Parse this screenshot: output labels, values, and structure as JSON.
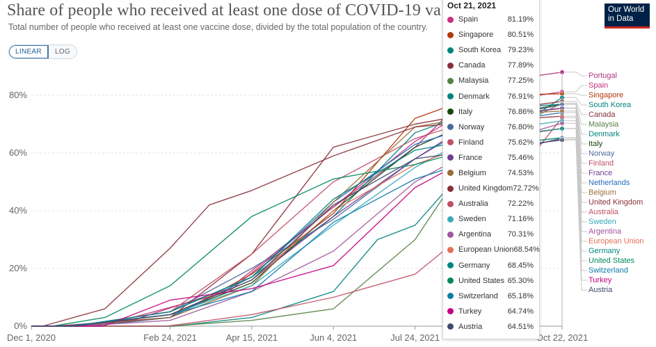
{
  "header": {
    "title": "Share of people who received at least one dose of COVID-19 va",
    "subtitle": "Total number of people who received at least one vaccine dose, divided by the total population of the country."
  },
  "controls": {
    "linear_label": "LINEAR",
    "log_label": "LOG",
    "active": "LINEAR"
  },
  "logo": {
    "line1": "Our World",
    "line2": "in Data"
  },
  "tooltip": {
    "date": "Oct 21, 2021",
    "rows": [
      {
        "name": "Spain",
        "value": "81.19%"
      },
      {
        "name": "Singapore",
        "value": "80.51%"
      },
      {
        "name": "South Korea",
        "value": "79.23%"
      },
      {
        "name": "Canada",
        "value": "77.89%"
      },
      {
        "name": "Malaysia",
        "value": "77.25%"
      },
      {
        "name": "Denmark",
        "value": "76.91%"
      },
      {
        "name": "Italy",
        "value": "76.86%"
      },
      {
        "name": "Norway",
        "value": "76.80%"
      },
      {
        "name": "Finland",
        "value": "75.62%"
      },
      {
        "name": "France",
        "value": "75.46%"
      },
      {
        "name": "Belgium",
        "value": "74.53%"
      },
      {
        "name": "United Kingdom",
        "value": "72.72%"
      },
      {
        "name": "Australia",
        "value": "72.22%"
      },
      {
        "name": "Sweden",
        "value": "71.16%"
      },
      {
        "name": "Argentina",
        "value": "70.31%"
      },
      {
        "name": "European Union",
        "value": "68.54%"
      },
      {
        "name": "Germany",
        "value": "68.45%"
      },
      {
        "name": "United States",
        "value": "65.30%"
      },
      {
        "name": "Switzerland",
        "value": "65.18%"
      },
      {
        "name": "Turkey",
        "value": "64.74%"
      },
      {
        "name": "Austria",
        "value": "64.51%"
      }
    ]
  },
  "chart_data": {
    "type": "line",
    "title": "Share of people who received at least one dose of COVID-19 va",
    "subtitle": "Total number of people who received at least one vaccine dose, divided by the total population of the country.",
    "x_ticks": [
      "Dec 1, 2020",
      "Feb 24, 2021",
      "Apr 15, 2021",
      "Jun 4, 2021",
      "Jul 24, 2021",
      "Oct 22, 2021"
    ],
    "y_ticks": [
      "0%",
      "20%",
      "40%",
      "60%",
      "80%"
    ],
    "ylim": [
      0,
      85
    ],
    "xlim": [
      "2020-12-01",
      "2021-10-22"
    ],
    "grid": "horizontal dashed",
    "legend": "right end labels",
    "end_labels": [
      "Portugal",
      "Spain",
      "Singapore",
      "South Korea",
      "Canada",
      "Malaysia",
      "Denmark",
      "Italy",
      "Norway",
      "Finland",
      "France",
      "Netherlands",
      "Belgium",
      "United Kingdom",
      "Australia",
      "Sweden",
      "Argentina",
      "European Union",
      "Germany",
      "United States",
      "Switzerland",
      "Turkey",
      "Austria"
    ],
    "series": [
      {
        "name": "Portugal",
        "color": "#b13584",
        "points": [
          [
            "2020-12-27",
            0
          ],
          [
            "2021-02-01",
            2
          ],
          [
            "2021-04-01",
            13
          ],
          [
            "2021-06-01",
            40
          ],
          [
            "2021-07-24",
            62
          ],
          [
            "2021-09-01",
            84
          ],
          [
            "2021-10-22",
            88
          ]
        ]
      },
      {
        "name": "Spain",
        "color": "#c8307a",
        "points": [
          [
            "2020-12-27",
            0
          ],
          [
            "2021-02-01",
            3
          ],
          [
            "2021-04-01",
            12
          ],
          [
            "2021-06-01",
            40
          ],
          [
            "2021-07-24",
            64
          ],
          [
            "2021-09-01",
            77
          ],
          [
            "2021-10-22",
            81.19
          ]
        ]
      },
      {
        "name": "Singapore",
        "color": "#b3380c",
        "points": [
          [
            "2021-01-05",
            0
          ],
          [
            "2021-02-24",
            3
          ],
          [
            "2021-04-15",
            18
          ],
          [
            "2021-06-04",
            39
          ],
          [
            "2021-07-24",
            72
          ],
          [
            "2021-09-01",
            80
          ],
          [
            "2021-10-22",
            80.51
          ]
        ]
      },
      {
        "name": "South Korea",
        "color": "#00847e",
        "points": [
          [
            "2021-02-26",
            0
          ],
          [
            "2021-04-15",
            3
          ],
          [
            "2021-06-04",
            12
          ],
          [
            "2021-07-01",
            30
          ],
          [
            "2021-07-24",
            35
          ],
          [
            "2021-09-01",
            60
          ],
          [
            "2021-10-22",
            79.23
          ]
        ]
      },
      {
        "name": "Canada",
        "color": "#883039",
        "points": [
          [
            "2020-12-15",
            0
          ],
          [
            "2021-02-24",
            3
          ],
          [
            "2021-04-15",
            25
          ],
          [
            "2021-06-04",
            62
          ],
          [
            "2021-07-24",
            70
          ],
          [
            "2021-09-01",
            74
          ],
          [
            "2021-10-22",
            77.89
          ]
        ]
      },
      {
        "name": "Malaysia",
        "color": "#578145",
        "points": [
          [
            "2021-02-24",
            0
          ],
          [
            "2021-04-15",
            2
          ],
          [
            "2021-06-04",
            6
          ],
          [
            "2021-07-24",
            30
          ],
          [
            "2021-09-01",
            63
          ],
          [
            "2021-10-22",
            77.25
          ]
        ]
      },
      {
        "name": "Denmark",
        "color": "#00847e",
        "points": [
          [
            "2020-12-27",
            0
          ],
          [
            "2021-02-24",
            5
          ],
          [
            "2021-04-15",
            17
          ],
          [
            "2021-06-04",
            38
          ],
          [
            "2021-07-24",
            67
          ],
          [
            "2021-09-01",
            75
          ],
          [
            "2021-10-22",
            76.91
          ]
        ]
      },
      {
        "name": "Italy",
        "color": "#18470f",
        "points": [
          [
            "2020-12-27",
            0
          ],
          [
            "2021-02-24",
            4
          ],
          [
            "2021-04-15",
            15
          ],
          [
            "2021-06-04",
            40
          ],
          [
            "2021-07-24",
            62
          ],
          [
            "2021-09-01",
            72
          ],
          [
            "2021-10-22",
            76.86
          ]
        ]
      },
      {
        "name": "Norway",
        "color": "#4c6a9c",
        "points": [
          [
            "2020-12-27",
            0
          ],
          [
            "2021-02-24",
            5
          ],
          [
            "2021-04-15",
            20
          ],
          [
            "2021-06-04",
            37
          ],
          [
            "2021-07-24",
            58
          ],
          [
            "2021-09-01",
            71
          ],
          [
            "2021-10-22",
            76.8
          ]
        ]
      },
      {
        "name": "Finland",
        "color": "#c15065",
        "points": [
          [
            "2020-12-27",
            0
          ],
          [
            "2021-02-24",
            5
          ],
          [
            "2021-04-15",
            25
          ],
          [
            "2021-06-04",
            50
          ],
          [
            "2021-07-24",
            65
          ],
          [
            "2021-09-01",
            72
          ],
          [
            "2021-10-22",
            75.62
          ]
        ]
      },
      {
        "name": "France",
        "color": "#6d3e91",
        "points": [
          [
            "2020-12-27",
            0
          ],
          [
            "2021-02-24",
            4
          ],
          [
            "2021-04-15",
            16
          ],
          [
            "2021-06-04",
            38
          ],
          [
            "2021-07-24",
            58
          ],
          [
            "2021-09-01",
            72
          ],
          [
            "2021-10-22",
            75.46
          ]
        ]
      },
      {
        "name": "Netherlands",
        "color": "#286bbb",
        "points": [
          [
            "2021-01-06",
            0
          ],
          [
            "2021-02-24",
            3
          ],
          [
            "2021-04-15",
            17
          ],
          [
            "2021-06-04",
            43
          ],
          [
            "2021-07-24",
            63
          ],
          [
            "2021-09-01",
            70
          ],
          [
            "2021-10-22",
            74
          ]
        ]
      },
      {
        "name": "Belgium",
        "color": "#996d39",
        "points": [
          [
            "2020-12-28",
            0
          ],
          [
            "2021-02-24",
            3
          ],
          [
            "2021-04-15",
            14
          ],
          [
            "2021-06-04",
            43
          ],
          [
            "2021-07-24",
            69
          ],
          [
            "2021-09-01",
            73
          ],
          [
            "2021-10-22",
            74.53
          ]
        ]
      },
      {
        "name": "United Kingdom",
        "color": "#883039",
        "points": [
          [
            "2020-12-08",
            0
          ],
          [
            "2021-01-15",
            6
          ],
          [
            "2021-02-24",
            27
          ],
          [
            "2021-03-20",
            42
          ],
          [
            "2021-04-15",
            47
          ],
          [
            "2021-06-04",
            59
          ],
          [
            "2021-07-24",
            69
          ],
          [
            "2021-09-01",
            71
          ],
          [
            "2021-10-22",
            72.72
          ]
        ]
      },
      {
        "name": "Australia",
        "color": "#c15065",
        "points": [
          [
            "2021-02-22",
            0
          ],
          [
            "2021-04-15",
            4
          ],
          [
            "2021-06-04",
            10
          ],
          [
            "2021-07-24",
            18
          ],
          [
            "2021-09-01",
            36
          ],
          [
            "2021-10-22",
            72.22
          ]
        ]
      },
      {
        "name": "Sweden",
        "color": "#38aaba",
        "points": [
          [
            "2020-12-27",
            0
          ],
          [
            "2021-02-24",
            4
          ],
          [
            "2021-04-15",
            14
          ],
          [
            "2021-06-04",
            35
          ],
          [
            "2021-07-24",
            55
          ],
          [
            "2021-09-01",
            67
          ],
          [
            "2021-10-22",
            71.16
          ]
        ]
      },
      {
        "name": "Argentina",
        "color": "#a2559c",
        "points": [
          [
            "2020-12-29",
            0
          ],
          [
            "2021-02-24",
            2
          ],
          [
            "2021-04-15",
            12
          ],
          [
            "2021-06-04",
            26
          ],
          [
            "2021-07-24",
            50
          ],
          [
            "2021-09-01",
            62
          ],
          [
            "2021-10-22",
            70.31
          ]
        ]
      },
      {
        "name": "European Union",
        "color": "#e56e5a",
        "points": [
          [
            "2020-12-27",
            0
          ],
          [
            "2021-02-24",
            4
          ],
          [
            "2021-04-15",
            16
          ],
          [
            "2021-06-04",
            40
          ],
          [
            "2021-07-24",
            56
          ],
          [
            "2021-09-01",
            64
          ],
          [
            "2021-10-22",
            68.54
          ]
        ]
      },
      {
        "name": "Germany",
        "color": "#00847e",
        "points": [
          [
            "2020-12-27",
            0
          ],
          [
            "2021-02-24",
            5
          ],
          [
            "2021-04-15",
            17
          ],
          [
            "2021-06-04",
            44
          ],
          [
            "2021-07-24",
            61
          ],
          [
            "2021-09-01",
            65
          ],
          [
            "2021-10-22",
            68.45
          ]
        ]
      },
      {
        "name": "United States",
        "color": "#00875e",
        "points": [
          [
            "2020-12-14",
            0
          ],
          [
            "2021-01-15",
            3
          ],
          [
            "2021-02-24",
            14
          ],
          [
            "2021-04-15",
            38
          ],
          [
            "2021-06-04",
            51
          ],
          [
            "2021-07-24",
            56
          ],
          [
            "2021-09-01",
            62
          ],
          [
            "2021-10-22",
            65.3
          ]
        ]
      },
      {
        "name": "Switzerland",
        "color": "#0c7ba8",
        "points": [
          [
            "2020-12-23",
            0
          ],
          [
            "2021-02-24",
            4
          ],
          [
            "2021-04-15",
            12
          ],
          [
            "2021-06-04",
            36
          ],
          [
            "2021-07-24",
            51
          ],
          [
            "2021-09-01",
            58
          ],
          [
            "2021-10-22",
            65.18
          ]
        ]
      },
      {
        "name": "Turkey",
        "color": "#c3007f",
        "points": [
          [
            "2021-01-14",
            0
          ],
          [
            "2021-02-24",
            9
          ],
          [
            "2021-04-15",
            13
          ],
          [
            "2021-06-04",
            21
          ],
          [
            "2021-07-24",
            48
          ],
          [
            "2021-09-01",
            60
          ],
          [
            "2021-10-22",
            64.74
          ]
        ]
      },
      {
        "name": "Austria",
        "color": "#3f4b6b",
        "points": [
          [
            "2020-12-27",
            0
          ],
          [
            "2021-02-24",
            4
          ],
          [
            "2021-04-15",
            16
          ],
          [
            "2021-06-04",
            42
          ],
          [
            "2021-07-24",
            58
          ],
          [
            "2021-09-01",
            61
          ],
          [
            "2021-10-22",
            64.51
          ]
        ]
      }
    ]
  }
}
